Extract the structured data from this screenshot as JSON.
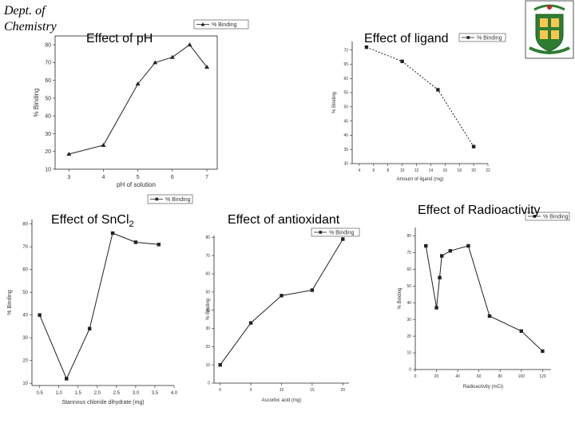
{
  "header": {
    "line1": "Dept. of",
    "line2": "Chemistry"
  },
  "logo": {
    "text": "xxxxxxxx"
  },
  "chart_data": [
    {
      "id": "ph",
      "type": "line",
      "title": "Effect of pH",
      "xlabel": "pH of solution",
      "ylabel": "% Binding",
      "legend": "% Binding",
      "legend_position": "top",
      "xlim": [
        2.6,
        7.3
      ],
      "ylim": [
        10,
        85
      ],
      "xticks": [
        3,
        4,
        5,
        6,
        7
      ],
      "yticks": [
        10,
        20,
        30,
        40,
        50,
        60,
        70,
        80
      ],
      "marker": "triangle",
      "linestyle": "solid",
      "series": [
        {
          "name": "% Binding",
          "x": [
            3,
            4,
            5,
            5.5,
            6,
            6.5,
            7
          ],
          "y": [
            18.5,
            23.5,
            58,
            70,
            73,
            80,
            67.5
          ]
        }
      ]
    },
    {
      "id": "ligand",
      "type": "line",
      "title": "Effect of ligand",
      "xlabel": "Amount of ligand (mg)",
      "ylabel": "% Binding",
      "legend": "% Binding",
      "legend_position": "top-right",
      "xlim": [
        3,
        22
      ],
      "ylim": [
        30,
        73
      ],
      "xticks": [
        4,
        6,
        8,
        10,
        12,
        14,
        16,
        18,
        20,
        22
      ],
      "yticks": [
        30,
        35,
        40,
        45,
        50,
        55,
        60,
        65,
        70
      ],
      "marker": "square",
      "linestyle": "dashed",
      "series": [
        {
          "name": "% Binding",
          "x": [
            5,
            10,
            15,
            20
          ],
          "y": [
            71,
            66,
            56,
            36
          ]
        }
      ]
    },
    {
      "id": "sncl2",
      "type": "line",
      "title": "Effect of SnCl",
      "title_sub": "2",
      "xlabel": "Stannous chloride dihydrate (mg)",
      "ylabel": "% Binding",
      "legend": "% Binding",
      "legend_position": "top",
      "xlim": [
        0.3,
        4.0
      ],
      "ylim": [
        9,
        82
      ],
      "xticks": [
        "0.5",
        "1.0",
        "1.5",
        "2.0",
        "2.5",
        "3.0",
        "3.5",
        "4.0"
      ],
      "yticks": [
        10,
        20,
        30,
        40,
        50,
        60,
        70,
        80
      ],
      "marker": "square",
      "linestyle": "solid",
      "series": [
        {
          "name": "% Binding",
          "x": [
            0.5,
            1.2,
            1.8,
            2.4,
            3.0,
            3.6
          ],
          "y": [
            40,
            12,
            34,
            76,
            72,
            71
          ]
        }
      ]
    },
    {
      "id": "antioxidant",
      "type": "line",
      "title": "Effect of antioxidant",
      "xlabel": "Ascorbic acid (mg)",
      "ylabel": "% Binding",
      "legend": "% Binding",
      "legend_position": "top-right",
      "xlim": [
        -1,
        21
      ],
      "ylim": [
        0,
        81
      ],
      "xticks": [
        0,
        5,
        10,
        15,
        20
      ],
      "yticks": [
        0,
        10,
        20,
        30,
        40,
        50,
        60,
        70,
        80
      ],
      "marker": "square",
      "linestyle": "solid",
      "series": [
        {
          "name": "% Binding",
          "x": [
            0,
            5,
            10,
            15,
            20
          ],
          "y": [
            10,
            33,
            48,
            51,
            79
          ]
        }
      ]
    },
    {
      "id": "radioactivity",
      "type": "line",
      "title": "Effect of Radioactivity",
      "xlabel": "Radioactivity (mCi)",
      "ylabel": "% Binding",
      "legend": "% Binding",
      "legend_position": "top-right",
      "xlim": [
        0,
        128
      ],
      "ylim": [
        0,
        85
      ],
      "xticks": [
        0,
        20,
        40,
        60,
        80,
        100,
        120
      ],
      "yticks": [
        0,
        10,
        20,
        30,
        40,
        50,
        60,
        70,
        80
      ],
      "marker": "square",
      "linestyle": "solid",
      "series": [
        {
          "name": "% Binding",
          "x": [
            10,
            20,
            23,
            25,
            33,
            50,
            70,
            100,
            120
          ],
          "y": [
            74,
            37,
            55,
            68,
            71,
            74,
            32,
            23,
            11
          ]
        }
      ]
    }
  ]
}
